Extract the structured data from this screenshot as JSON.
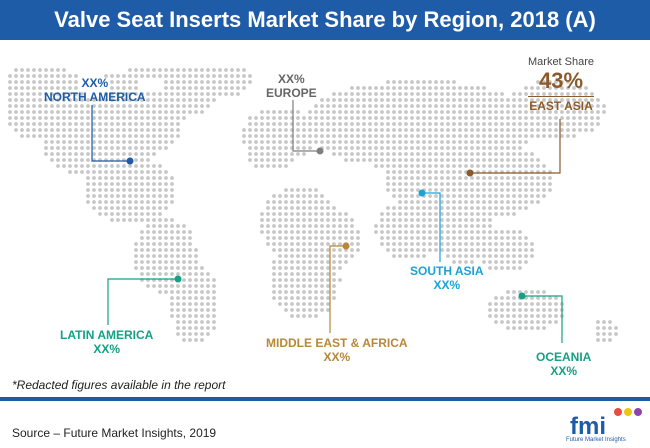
{
  "title": "Valve Seat Inserts Market Share by Region, 2018 (A)",
  "chart_data": {
    "type": "map",
    "metric_label": "Market Share",
    "regions": [
      {
        "name": "NORTH AMERICA",
        "value": "XX%",
        "color": "#1f5ca8"
      },
      {
        "name": "EUROPE",
        "value": "XX%",
        "color": "#7f7f7f"
      },
      {
        "name": "EAST ASIA",
        "value": "43%",
        "color": "#8b5a2b"
      },
      {
        "name": "SOUTH ASIA",
        "value": "XX%",
        "color": "#1aa3d6"
      },
      {
        "name": "LATIN AMERICA",
        "value": "XX%",
        "color": "#16a085"
      },
      {
        "name": "MIDDLE EAST & AFRICA",
        "value": "XX%",
        "color": "#b8873a"
      },
      {
        "name": "OCEANIA",
        "value": "XX%",
        "color": "#16a085"
      }
    ]
  },
  "footnote": "*Redacted figures available in the report",
  "source": "Source – Future Market Insights, 2019",
  "logo": {
    "letters": "fmi",
    "tagline": "Future Market Insights"
  },
  "colors": {
    "brand": "#1f5ca8",
    "dots": "#c7c7c7"
  }
}
